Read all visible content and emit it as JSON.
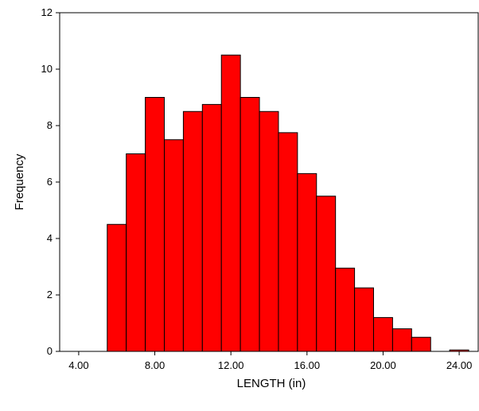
{
  "chart_data": {
    "type": "bar",
    "title": "",
    "xlabel": "LENGTH (in)",
    "ylabel": "Frequency",
    "xlim": [
      3.0,
      25.0
    ],
    "ylim": [
      0,
      12
    ],
    "bin_width": 1.0,
    "x_ticks": [
      4.0,
      8.0,
      12.0,
      16.0,
      20.0,
      24.0
    ],
    "x_tick_labels": [
      "4.00",
      "8.00",
      "12.00",
      "16.00",
      "20.00",
      "24.00"
    ],
    "y_ticks": [
      0,
      2,
      4,
      6,
      8,
      10,
      12
    ],
    "y_tick_labels": [
      "0",
      "2",
      "4",
      "6",
      "8",
      "10",
      "12"
    ],
    "grid": false,
    "legend": "none",
    "bar_color": "#ff0000",
    "bar_stroke": "#000000",
    "bins": [
      {
        "x": 6.0,
        "value": 4.5
      },
      {
        "x": 7.0,
        "value": 7.0
      },
      {
        "x": 8.0,
        "value": 9.0
      },
      {
        "x": 9.0,
        "value": 7.5
      },
      {
        "x": 10.0,
        "value": 8.5
      },
      {
        "x": 11.0,
        "value": 8.75
      },
      {
        "x": 12.0,
        "value": 10.5
      },
      {
        "x": 13.0,
        "value": 9.0
      },
      {
        "x": 14.0,
        "value": 8.5
      },
      {
        "x": 15.0,
        "value": 7.75
      },
      {
        "x": 16.0,
        "value": 6.3
      },
      {
        "x": 17.0,
        "value": 5.5
      },
      {
        "x": 18.0,
        "value": 2.95
      },
      {
        "x": 19.0,
        "value": 2.25
      },
      {
        "x": 20.0,
        "value": 1.2
      },
      {
        "x": 21.0,
        "value": 0.8
      },
      {
        "x": 22.0,
        "value": 0.5
      },
      {
        "x": 24.0,
        "value": 0.05
      }
    ]
  }
}
